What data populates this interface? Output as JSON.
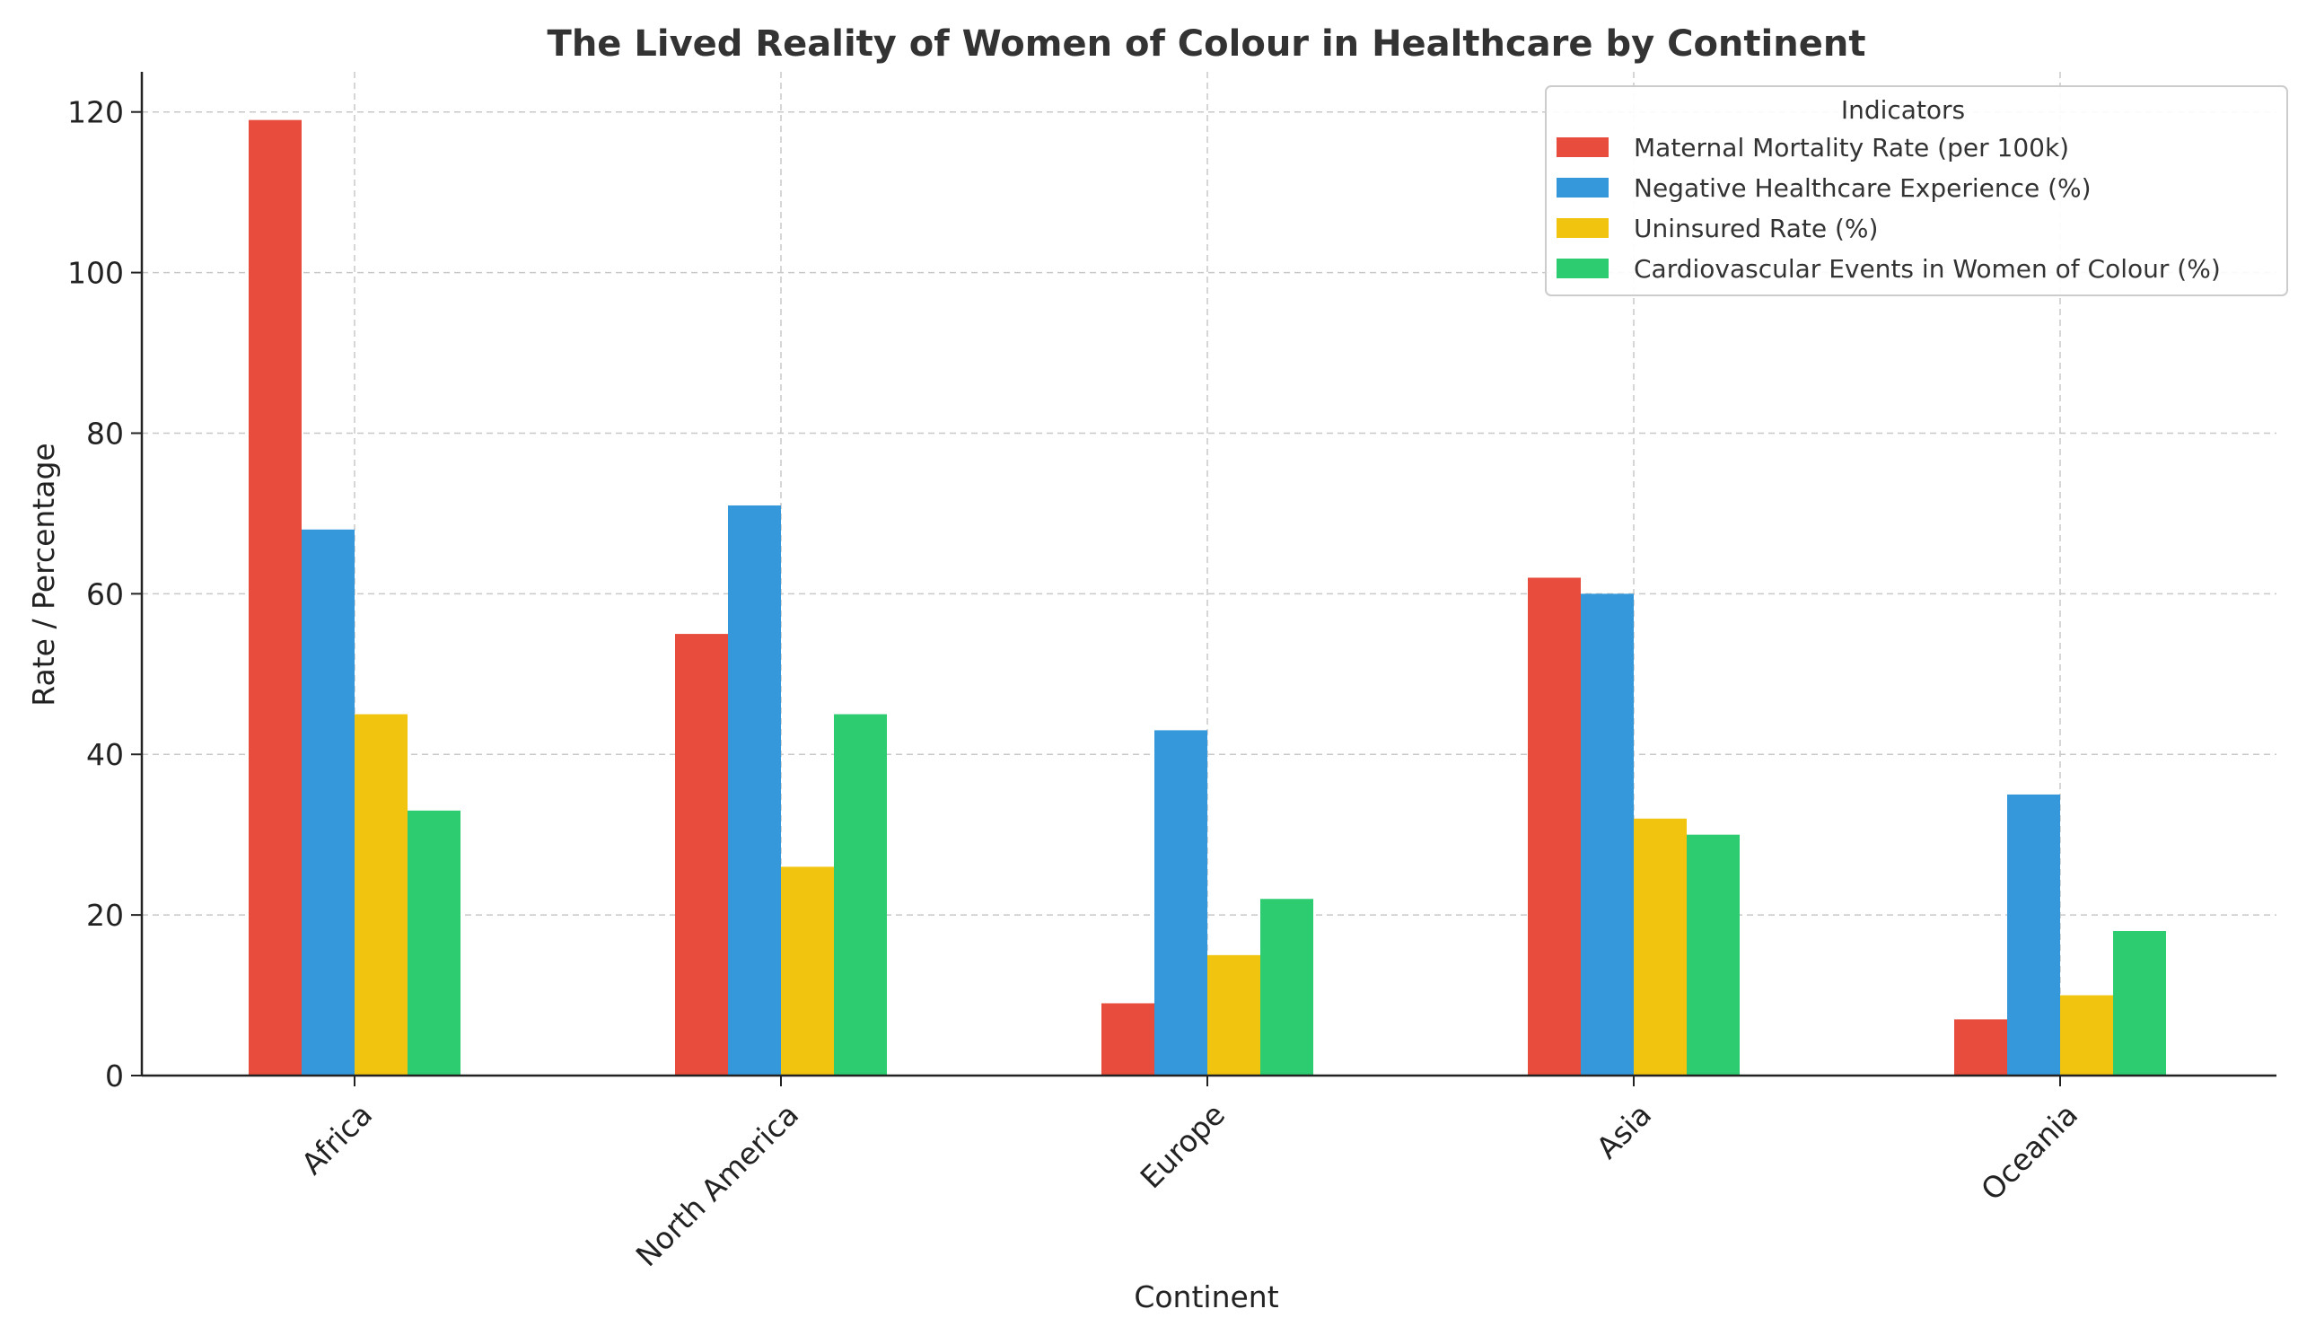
{
  "chart_data": {
    "type": "bar",
    "title": "The Lived Reality of Women of Colour in Healthcare by Continent",
    "xlabel": "Continent",
    "ylabel": "Rate / Percentage",
    "categories": [
      "Africa",
      "North America",
      "Europe",
      "Asia",
      "Oceania"
    ],
    "ylim": [
      0,
      125
    ],
    "yticks": [
      0,
      20,
      40,
      60,
      80,
      100,
      120
    ],
    "grid": true,
    "legend": {
      "title": "Indicators",
      "placement": "top-right"
    },
    "series": [
      {
        "name": "Maternal Mortality Rate (per 100k)",
        "color": "#e74c3c",
        "values": [
          119,
          55,
          9,
          62,
          7
        ]
      },
      {
        "name": "Negative Healthcare Experience (%)",
        "color": "#3498db",
        "values": [
          68,
          71,
          43,
          60,
          35
        ]
      },
      {
        "name": "Uninsured Rate (%)",
        "color": "#f1c40f",
        "values": [
          45,
          26,
          15,
          32,
          10
        ]
      },
      {
        "name": "Cardiovascular Events in Women of Colour (%)",
        "color": "#2ecc71",
        "values": [
          33,
          45,
          22,
          30,
          18
        ]
      }
    ]
  }
}
